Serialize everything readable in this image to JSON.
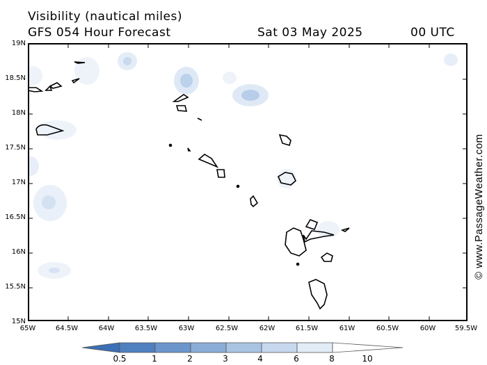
{
  "header": {
    "title_line1": "Visibility (nautical miles)",
    "forecast": "GFS 054 Hour Forecast",
    "date": "Sat 03 May 2025",
    "time": "00 UTC"
  },
  "axes": {
    "lat_labels": [
      "19N",
      "18.5N",
      "18N",
      "17.5N",
      "17N",
      "16.5N",
      "16N",
      "15.5N",
      "15N"
    ],
    "lon_labels": [
      "65W",
      "64.5W",
      "64W",
      "63.5W",
      "63W",
      "62.5W",
      "62W",
      "61.5W",
      "61W",
      "60.5W",
      "60W",
      "59.5W"
    ]
  },
  "legend": {
    "labels": [
      "0.5",
      "1",
      "2",
      "3",
      "4",
      "6",
      "8",
      "10"
    ],
    "colors": [
      "#3b6fb6",
      "#4f80c0",
      "#6b96cc",
      "#8aadd8",
      "#a9c3e3",
      "#c6d8ee",
      "#e2ecf7",
      "#ffffff"
    ]
  },
  "credit": "© www.PassageWeather.com"
}
